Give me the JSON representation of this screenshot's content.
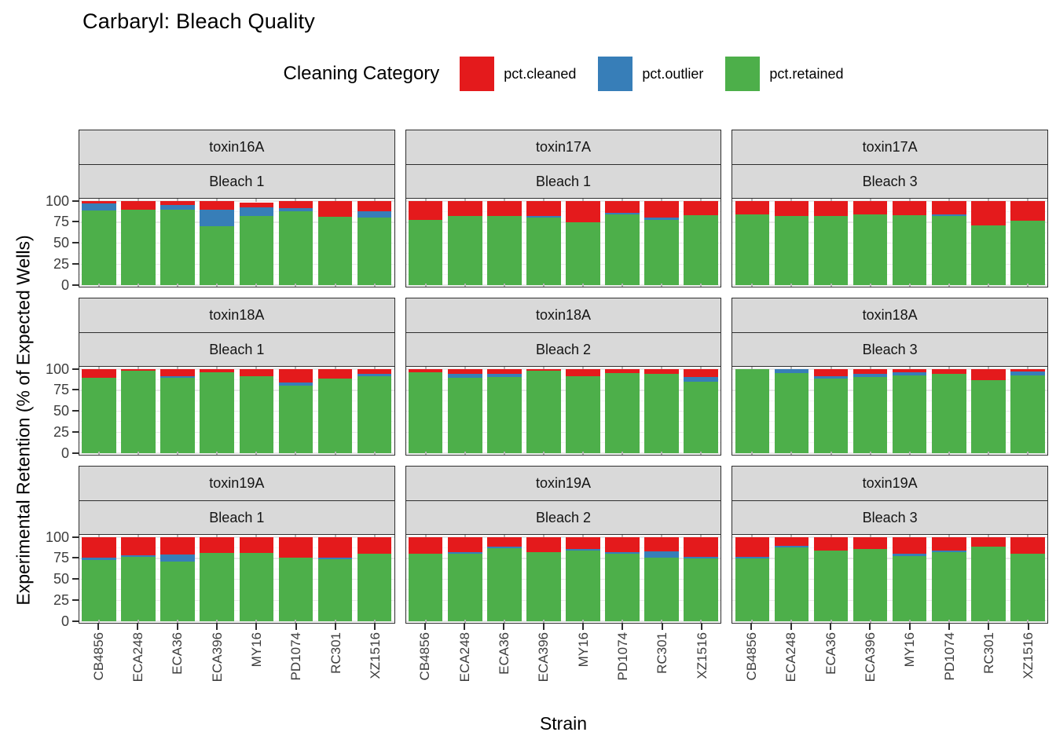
{
  "title": "Carbaryl: Bleach Quality",
  "legend": {
    "title": "Cleaning Category",
    "items": [
      {
        "label": "pct.cleaned",
        "color": "#E41A1C"
      },
      {
        "label": "pct.outlier",
        "color": "#377EB8"
      },
      {
        "label": "pct.retained",
        "color": "#4DAF4A"
      }
    ]
  },
  "axes": {
    "x_title": "Strain",
    "y_title": "Experimental Retention (% of Expected Wells)",
    "y_tick_labels": [
      100,
      75,
      50,
      25,
      0
    ]
  },
  "colors": {
    "strip_fill": "#d9d9d9",
    "panel_border": "#2e2e2e",
    "cleaned": "#E41A1C",
    "outlier": "#377EB8",
    "retained": "#4DAF4A"
  },
  "chart_data": {
    "type": "bar",
    "stacked": true,
    "ylim": [
      0,
      100
    ],
    "y_major_ticks": [
      0,
      25,
      50,
      75,
      100
    ],
    "y_minor_ticks": [
      12.5,
      37.5,
      62.5,
      87.5
    ],
    "legend_position": "top",
    "grid": true,
    "categories": [
      "CB4856",
      "ECA248",
      "ECA36",
      "ECA396",
      "MY16",
      "PD1074",
      "RC301",
      "XZ1516"
    ],
    "stack_order_bottom_to_top": [
      "pct.retained",
      "pct.outlier",
      "pct.cleaned"
    ],
    "facets": [
      {
        "row": 0,
        "col": 0,
        "toxin": "toxin16A",
        "bleach": "Bleach 1",
        "series": [
          {
            "name": "pct.cleaned",
            "values": [
              3,
              10,
              5,
              10,
              5,
              8,
              19,
              12
            ]
          },
          {
            "name": "pct.outlier",
            "values": [
              8,
              0,
              5,
              20,
              11,
              4,
              0,
              8
            ]
          },
          {
            "name": "pct.retained",
            "values": [
              89,
              90,
              90,
              70,
              82,
              88,
              81,
              80
            ]
          }
        ]
      },
      {
        "row": 0,
        "col": 1,
        "toxin": "toxin17A",
        "bleach": "Bleach 1",
        "series": [
          {
            "name": "pct.cleaned",
            "values": [
              22,
              18,
              18,
              18,
              25,
              14,
              20,
              17
            ]
          },
          {
            "name": "pct.outlier",
            "values": [
              0,
              0,
              0,
              2,
              0,
              2,
              2,
              0
            ]
          },
          {
            "name": "pct.retained",
            "values": [
              78,
              82,
              82,
              80,
              75,
              84,
              78,
              83
            ]
          }
        ]
      },
      {
        "row": 0,
        "col": 2,
        "toxin": "toxin17A",
        "bleach": "Bleach 3",
        "series": [
          {
            "name": "pct.cleaned",
            "values": [
              16,
              18,
              18,
              16,
              17,
              16,
              29,
              23
            ]
          },
          {
            "name": "pct.outlier",
            "values": [
              0,
              0,
              0,
              0,
              0,
              2,
              0,
              0
            ]
          },
          {
            "name": "pct.retained",
            "values": [
              84,
              82,
              82,
              84,
              83,
              82,
              71,
              77
            ]
          }
        ]
      },
      {
        "row": 1,
        "col": 0,
        "toxin": "toxin18A",
        "bleach": "Bleach 1",
        "series": [
          {
            "name": "pct.cleaned",
            "values": [
              10,
              2,
              8,
              4,
              8,
              16,
              11,
              6
            ]
          },
          {
            "name": "pct.outlier",
            "values": [
              0,
              0,
              2,
              0,
              0,
              4,
              0,
              2
            ]
          },
          {
            "name": "pct.retained",
            "values": [
              90,
              98,
              90,
              96,
              92,
              80,
              89,
              92
            ]
          }
        ]
      },
      {
        "row": 1,
        "col": 1,
        "toxin": "toxin18A",
        "bleach": "Bleach 2",
        "series": [
          {
            "name": "pct.cleaned",
            "values": [
              4,
              6,
              6,
              2,
              8,
              5,
              6,
              9
            ]
          },
          {
            "name": "pct.outlier",
            "values": [
              0,
              4,
              3,
              0,
              0,
              0,
              0,
              6
            ]
          },
          {
            "name": "pct.retained",
            "values": [
              96,
              90,
              91,
              98,
              92,
              95,
              94,
              85
            ]
          }
        ]
      },
      {
        "row": 1,
        "col": 2,
        "toxin": "toxin18A",
        "bleach": "Bleach 3",
        "series": [
          {
            "name": "pct.cleaned",
            "values": [
              0,
              0,
              8,
              6,
              4,
              6,
              13,
              3
            ]
          },
          {
            "name": "pct.outlier",
            "values": [
              0,
              5,
              3,
              3,
              3,
              0,
              0,
              4
            ]
          },
          {
            "name": "pct.retained",
            "values": [
              100,
              95,
              89,
              91,
              93,
              94,
              87,
              93
            ]
          }
        ]
      },
      {
        "row": 2,
        "col": 0,
        "toxin": "toxin19A",
        "bleach": "Bleach 1",
        "series": [
          {
            "name": "pct.cleaned",
            "values": [
              24,
              21,
              21,
              19,
              19,
              24,
              24,
              20
            ]
          },
          {
            "name": "pct.outlier",
            "values": [
              3,
              2,
              8,
              0,
              0,
              0,
              2,
              0
            ]
          },
          {
            "name": "pct.retained",
            "values": [
              73,
              77,
              71,
              81,
              81,
              76,
              74,
              80
            ]
          }
        ]
      },
      {
        "row": 2,
        "col": 1,
        "toxin": "toxin19A",
        "bleach": "Bleach 2",
        "series": [
          {
            "name": "pct.cleaned",
            "values": [
              20,
              18,
              11,
              18,
              14,
              18,
              17,
              23
            ]
          },
          {
            "name": "pct.outlier",
            "values": [
              0,
              2,
              2,
              0,
              2,
              2,
              7,
              2
            ]
          },
          {
            "name": "pct.retained",
            "values": [
              80,
              80,
              87,
              82,
              84,
              80,
              76,
              75
            ]
          }
        ]
      },
      {
        "row": 2,
        "col": 2,
        "toxin": "toxin19A",
        "bleach": "Bleach 3",
        "series": [
          {
            "name": "pct.cleaned",
            "values": [
              23,
              10,
              16,
              14,
              20,
              16,
              11,
              20
            ]
          },
          {
            "name": "pct.outlier",
            "values": [
              2,
              2,
              0,
              0,
              2,
              2,
              0,
              0
            ]
          },
          {
            "name": "pct.retained",
            "values": [
              75,
              88,
              84,
              86,
              78,
              82,
              89,
              80
            ]
          }
        ]
      }
    ]
  }
}
